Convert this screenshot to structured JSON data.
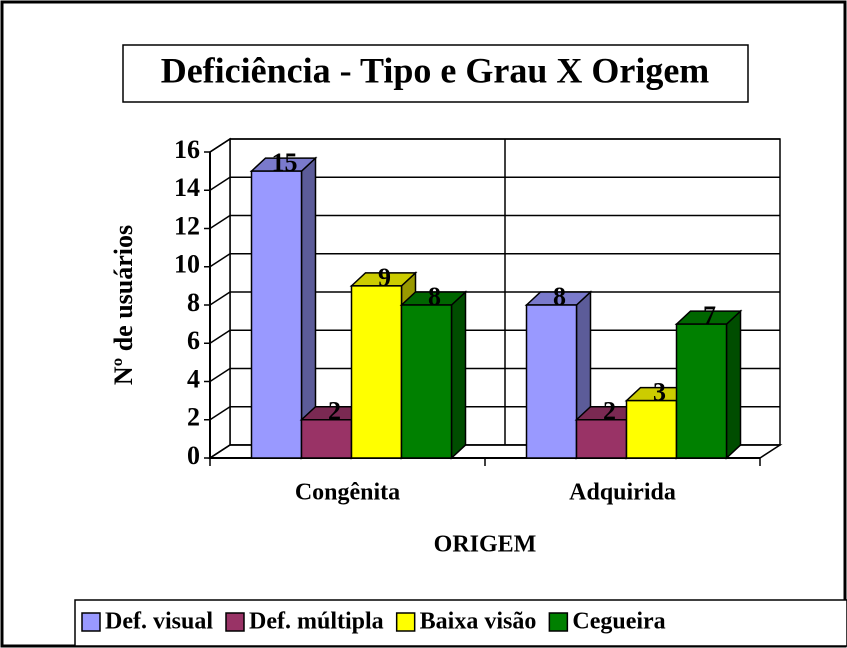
{
  "chart_data": {
    "type": "bar3d",
    "title": "Deficiência - Tipo e Grau X Origem",
    "categories": [
      "Congênita",
      "Adquirida"
    ],
    "series": [
      {
        "name": "Def. visual",
        "color": "#9999ff",
        "values": [
          15,
          8
        ]
      },
      {
        "name": "Def. múltipla",
        "color": "#993366",
        "values": [
          2,
          2
        ]
      },
      {
        "name": "Baixa visão",
        "color": "#ffff00",
        "values": [
          9,
          3
        ]
      },
      {
        "name": "Cegueira",
        "color": "#008000",
        "values": [
          8,
          7
        ]
      }
    ],
    "x_label": "ORIGEM",
    "y_label": "Nº de usuários",
    "ylim": [
      0,
      16
    ],
    "yticks": [
      0,
      2,
      4,
      6,
      8,
      10,
      12,
      14,
      16
    ],
    "grid": true,
    "legend_position": "bottom"
  }
}
